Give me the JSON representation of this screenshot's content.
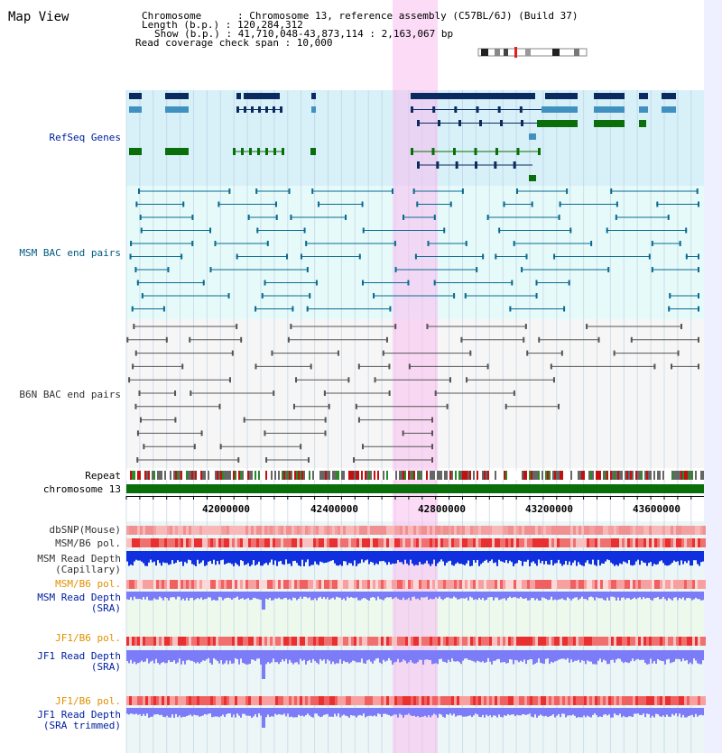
{
  "title": "Map View",
  "info": {
    "line1": "Chromosome      : Chromosome 13, reference assembly (C57BL/6J) (Build 37)",
    "line2": "Length (b.p.) : 120,284,312",
    "line3": "Show (b.p.) : 41,710,048-43,873,114 : 2,163,067 bp",
    "line4": "Read coverage check span : 10,000"
  },
  "tracks": {
    "refseq": "RefSeq Genes",
    "msm_bac": "MSM BAC end pairs",
    "b6n_bac": "B6N BAC end pairs",
    "repeat": "Repeat",
    "chromosome": "chromosome 13",
    "dbsnp": "dbSNP(Mouse)",
    "msm_b6_pol_1": "MSM/B6 pol.",
    "msm_read_cap_1": "MSM Read Depth",
    "msm_read_cap_2": "(Capillary)",
    "msm_b6_pol_2": "MSM/B6 pol.",
    "msm_read_sra_1": "MSM Read Depth",
    "msm_read_sra_2": "(SRA)",
    "jf1_b6_pol_1": "JF1/B6 pol.",
    "jf1_read_sra_1": "JF1 Read Depth",
    "jf1_read_sra_2": "(SRA)",
    "jf1_b6_pol_2": "JF1/B6 pol.",
    "jf1_read_trim_1": "JF1 Read Depth",
    "jf1_read_trim_2": "(SRA trimmed)"
  },
  "axis": {
    "ticks": [
      "42000000",
      "42400000",
      "42800000",
      "43200000",
      "43600000"
    ]
  },
  "colors": {
    "refseq_bg": "#d8f0f8",
    "bac_bg": "#e6fafa",
    "highlight": "#fadcf5",
    "gene_dark": "#0a2a60",
    "gene_mid": "#4090c0",
    "gene_green": "#0a6e0a",
    "chrom_green": "#0a6e0a",
    "depth_blue": "#1030e0",
    "depth_sra": "#7c7cf8",
    "orange_label": "#e09000",
    "blue_label": "#0020a0",
    "teal_label": "#005a80"
  }
}
